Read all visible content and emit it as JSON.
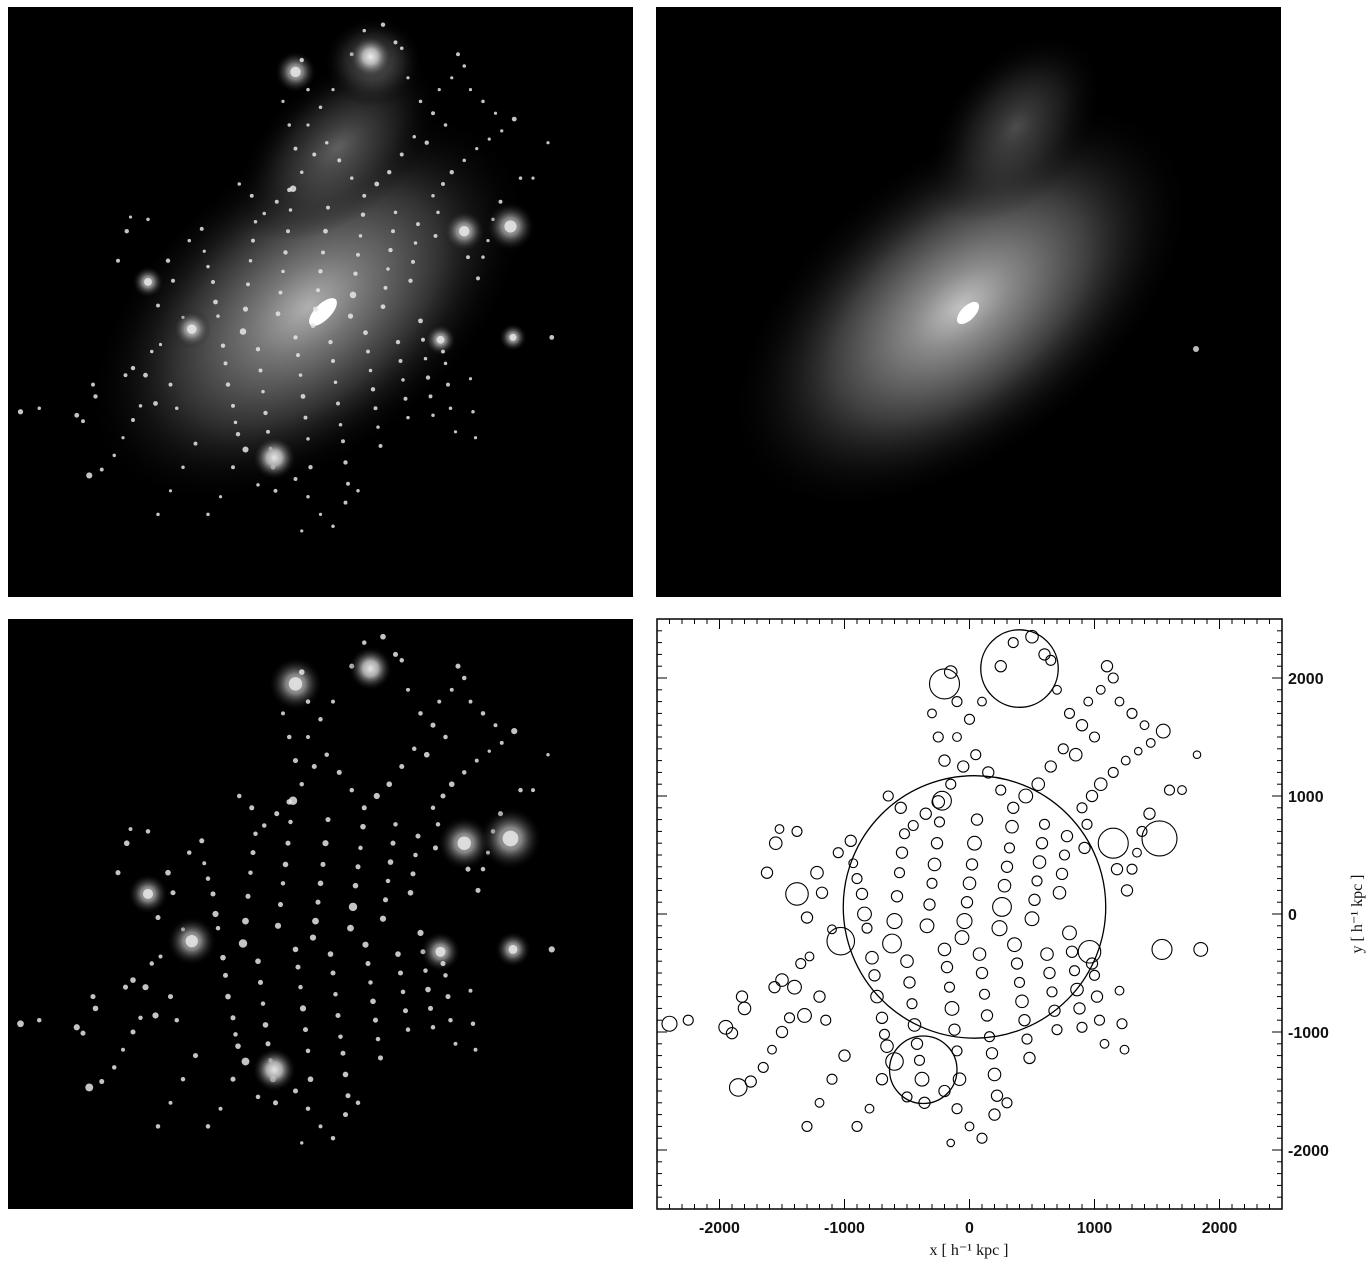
{
  "chart_data": {
    "type": "scatter",
    "marker": "open-circle",
    "xlabel": "x [ h⁻¹ kpc ]",
    "ylabel": "y [ h⁻¹ kpc ]",
    "xlim": [
      -2500,
      2500
    ],
    "ylim": [
      -2500,
      2500
    ],
    "xticks": [
      -2000,
      -1000,
      0,
      1000,
      2000
    ],
    "yticks": [
      2000,
      1000,
      0,
      -1000,
      -2000
    ],
    "xtick_labels": [
      "-2000",
      "-1000",
      "0",
      "1000",
      "2000"
    ],
    "ytick_labels": [
      "2000",
      "1000",
      "0",
      "-1000",
      "-2000"
    ],
    "large_circles": [
      {
        "x": 40,
        "y": 60,
        "r": 1050
      },
      {
        "x": 400,
        "y": 2080,
        "r": 310
      },
      {
        "x": -370,
        "y": -1320,
        "r": 270
      }
    ],
    "subhalo_circles": [
      [
        -2400,
        -930,
        60
      ],
      [
        -2250,
        -900,
        40
      ],
      [
        -1950,
        -960,
        55
      ],
      [
        -1900,
        -1010,
        45
      ],
      [
        -1800,
        -800,
        50
      ],
      [
        -1820,
        -700,
        45
      ],
      [
        -1850,
        -1470,
        70
      ],
      [
        -1750,
        -1420,
        45
      ],
      [
        -1650,
        -1300,
        40
      ],
      [
        -1580,
        -1150,
        35
      ],
      [
        -1500,
        -1000,
        45
      ],
      [
        -1440,
        -880,
        40
      ],
      [
        -1560,
        -620,
        45
      ],
      [
        -1500,
        -560,
        50
      ],
      [
        -1400,
        -620,
        55
      ],
      [
        -1350,
        -420,
        40
      ],
      [
        -1280,
        -360,
        35
      ],
      [
        -1200,
        -700,
        45
      ],
      [
        -1150,
        -900,
        40
      ],
      [
        -1320,
        -860,
        55
      ],
      [
        -1620,
        350,
        45
      ],
      [
        -1550,
        600,
        50
      ],
      [
        -1520,
        720,
        35
      ],
      [
        -1380,
        700,
        40
      ],
      [
        -1380,
        170,
        90
      ],
      [
        -1300,
        -30,
        45
      ],
      [
        -1220,
        350,
        50
      ],
      [
        -1180,
        180,
        45
      ],
      [
        -1100,
        -130,
        35
      ],
      [
        -1050,
        520,
        40
      ],
      [
        -1030,
        -230,
        110
      ],
      [
        -950,
        620,
        45
      ],
      [
        -930,
        430,
        35
      ],
      [
        -900,
        300,
        40
      ],
      [
        -860,
        170,
        45
      ],
      [
        -840,
        0,
        55
      ],
      [
        -820,
        -120,
        40
      ],
      [
        -780,
        -370,
        50
      ],
      [
        -760,
        -520,
        45
      ],
      [
        -740,
        -700,
        50
      ],
      [
        -700,
        -880,
        45
      ],
      [
        -680,
        -1020,
        40
      ],
      [
        -660,
        -1120,
        50
      ],
      [
        -620,
        -250,
        75
      ],
      [
        -600,
        -60,
        60
      ],
      [
        -580,
        150,
        45
      ],
      [
        -560,
        350,
        40
      ],
      [
        -540,
        520,
        45
      ],
      [
        -520,
        680,
        40
      ],
      [
        -500,
        -400,
        50
      ],
      [
        -480,
        -580,
        45
      ],
      [
        -460,
        -760,
        40
      ],
      [
        -440,
        -940,
        50
      ],
      [
        -420,
        -1100,
        45
      ],
      [
        -400,
        -1240,
        40
      ],
      [
        -380,
        -1400,
        55
      ],
      [
        -360,
        -1600,
        45
      ],
      [
        -340,
        -100,
        55
      ],
      [
        -320,
        80,
        45
      ],
      [
        -300,
        260,
        40
      ],
      [
        -280,
        420,
        50
      ],
      [
        -260,
        600,
        45
      ],
      [
        -240,
        780,
        40
      ],
      [
        -220,
        960,
        75
      ],
      [
        -200,
        -300,
        50
      ],
      [
        -180,
        -450,
        45
      ],
      [
        -160,
        -620,
        40
      ],
      [
        -140,
        -800,
        55
      ],
      [
        -120,
        -980,
        45
      ],
      [
        -100,
        -1160,
        40
      ],
      [
        -80,
        -1400,
        50
      ],
      [
        -60,
        -200,
        55
      ],
      [
        -40,
        -60,
        60
      ],
      [
        -20,
        100,
        45
      ],
      [
        0,
        260,
        50
      ],
      [
        20,
        420,
        45
      ],
      [
        40,
        600,
        55
      ],
      [
        60,
        800,
        45
      ],
      [
        80,
        -340,
        50
      ],
      [
        100,
        -500,
        45
      ],
      [
        120,
        -680,
        40
      ],
      [
        140,
        -860,
        45
      ],
      [
        160,
        -1040,
        40
      ],
      [
        180,
        -1180,
        45
      ],
      [
        200,
        -1360,
        50
      ],
      [
        220,
        -1540,
        45
      ],
      [
        240,
        -120,
        60
      ],
      [
        260,
        60,
        75
      ],
      [
        280,
        240,
        50
      ],
      [
        300,
        400,
        45
      ],
      [
        320,
        560,
        40
      ],
      [
        340,
        740,
        50
      ],
      [
        360,
        -260,
        55
      ],
      [
        380,
        -420,
        45
      ],
      [
        400,
        -580,
        40
      ],
      [
        420,
        -740,
        50
      ],
      [
        440,
        -900,
        45
      ],
      [
        460,
        -1060,
        40
      ],
      [
        480,
        -1220,
        45
      ],
      [
        500,
        -40,
        55
      ],
      [
        520,
        120,
        45
      ],
      [
        540,
        280,
        40
      ],
      [
        560,
        440,
        50
      ],
      [
        580,
        600,
        45
      ],
      [
        600,
        760,
        40
      ],
      [
        620,
        -340,
        50
      ],
      [
        640,
        -500,
        45
      ],
      [
        660,
        -660,
        40
      ],
      [
        680,
        -820,
        45
      ],
      [
        700,
        -980,
        40
      ],
      [
        720,
        180,
        50
      ],
      [
        740,
        340,
        45
      ],
      [
        760,
        500,
        40
      ],
      [
        780,
        660,
        45
      ],
      [
        800,
        -160,
        55
      ],
      [
        820,
        -320,
        45
      ],
      [
        840,
        -480,
        40
      ],
      [
        860,
        -640,
        50
      ],
      [
        880,
        -800,
        45
      ],
      [
        900,
        -960,
        40
      ],
      [
        920,
        560,
        45
      ],
      [
        940,
        760,
        40
      ],
      [
        960,
        -320,
        90
      ],
      [
        980,
        -420,
        45
      ],
      [
        1000,
        -520,
        40
      ],
      [
        1020,
        -700,
        45
      ],
      [
        1040,
        -900,
        40
      ],
      [
        1080,
        -1100,
        35
      ],
      [
        1150,
        600,
        120
      ],
      [
        1180,
        380,
        45
      ],
      [
        1200,
        -650,
        35
      ],
      [
        1220,
        -930,
        40
      ],
      [
        1240,
        -1150,
        35
      ],
      [
        1260,
        200,
        45
      ],
      [
        1300,
        380,
        40
      ],
      [
        1340,
        520,
        35
      ],
      [
        1380,
        700,
        40
      ],
      [
        1440,
        850,
        45
      ],
      [
        1520,
        640,
        140
      ],
      [
        1540,
        -300,
        80
      ],
      [
        1600,
        1050,
        40
      ],
      [
        1700,
        1050,
        35
      ],
      [
        1850,
        -300,
        55
      ],
      [
        1820,
        1350,
        30
      ],
      [
        1100,
        2100,
        45
      ],
      [
        1050,
        1900,
        35
      ],
      [
        1150,
        2000,
        40
      ],
      [
        1200,
        1800,
        35
      ],
      [
        1300,
        1700,
        40
      ],
      [
        1400,
        1600,
        35
      ],
      [
        1550,
        1550,
        55
      ],
      [
        1450,
        1450,
        35
      ],
      [
        1350,
        1380,
        30
      ],
      [
        1250,
        1300,
        35
      ],
      [
        1150,
        1200,
        40
      ],
      [
        1050,
        1100,
        50
      ],
      [
        980,
        1000,
        45
      ],
      [
        900,
        900,
        40
      ],
      [
        850,
        1350,
        50
      ],
      [
        750,
        1400,
        40
      ],
      [
        650,
        1250,
        45
      ],
      [
        550,
        1100,
        50
      ],
      [
        450,
        1000,
        55
      ],
      [
        350,
        900,
        45
      ],
      [
        250,
        1050,
        40
      ],
      [
        150,
        1200,
        45
      ],
      [
        50,
        1350,
        40
      ],
      [
        -50,
        1250,
        45
      ],
      [
        -150,
        1100,
        40
      ],
      [
        -250,
        950,
        50
      ],
      [
        -350,
        850,
        45
      ],
      [
        -450,
        750,
        40
      ],
      [
        -550,
        900,
        45
      ],
      [
        -650,
        1000,
        40
      ],
      [
        -200,
        1950,
        120
      ],
      [
        -150,
        2050,
        50
      ],
      [
        -100,
        1800,
        40
      ],
      [
        -300,
        1700,
        35
      ],
      [
        -250,
        1500,
        40
      ],
      [
        -200,
        1300,
        45
      ],
      [
        -100,
        1500,
        35
      ],
      [
        0,
        1650,
        40
      ],
      [
        100,
        1800,
        35
      ],
      [
        250,
        2100,
        45
      ],
      [
        350,
        2300,
        40
      ],
      [
        500,
        2350,
        50
      ],
      [
        600,
        2200,
        45
      ],
      [
        650,
        2150,
        40
      ],
      [
        700,
        1900,
        35
      ],
      [
        800,
        1700,
        40
      ],
      [
        900,
        1600,
        45
      ],
      [
        950,
        1800,
        35
      ],
      [
        1000,
        1500,
        40
      ],
      [
        -200,
        -1500,
        45
      ],
      [
        -100,
        -1650,
        40
      ],
      [
        0,
        -1800,
        35
      ],
      [
        100,
        -1900,
        40
      ],
      [
        200,
        -1700,
        45
      ],
      [
        300,
        -1600,
        40
      ],
      [
        -600,
        -1250,
        70
      ],
      [
        -700,
        -1400,
        45
      ],
      [
        -500,
        -1550,
        40
      ],
      [
        -800,
        -1650,
        35
      ],
      [
        -900,
        -1800,
        40
      ],
      [
        -150,
        -1940,
        30
      ],
      [
        -1000,
        -1200,
        45
      ],
      [
        -1100,
        -1400,
        40
      ],
      [
        -1200,
        -1600,
        35
      ],
      [
        -1300,
        -1800,
        40
      ]
    ]
  }
}
